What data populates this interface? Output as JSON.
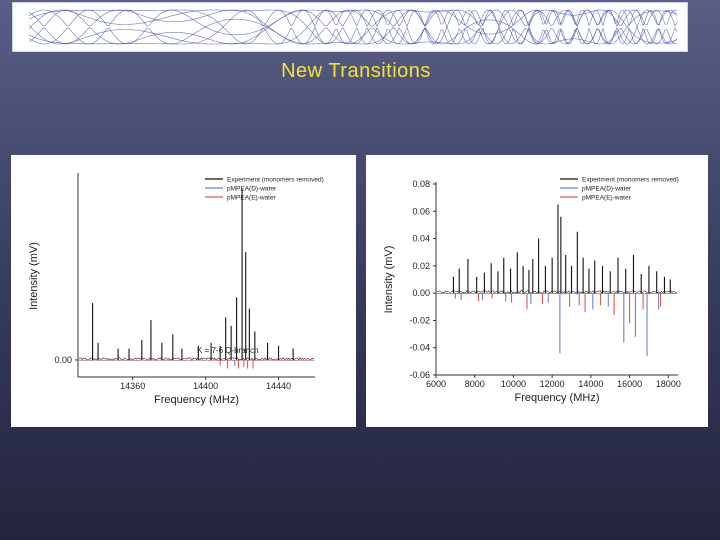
{
  "slide": {
    "title": "New Transitions",
    "background_color": "#3f4366",
    "title_color": "#f0e23a"
  },
  "chart_data": [
    {
      "type": "line",
      "title": "",
      "xlabel": "Frequency (MHz)",
      "ylabel": "Intensity (mV)",
      "xlim": [
        14330,
        14460
      ],
      "ylim": [
        -0.06,
        0.65
      ],
      "x_ticks": [
        14360,
        14400,
        14440
      ],
      "y_ticks": [
        0.0
      ],
      "y_tick_labels": [
        "0.00"
      ],
      "grid": false,
      "legend_position": "top-right",
      "annotations": [
        "K = 7-6 Q-branch"
      ],
      "series": [
        {
          "name": "Experiment (monomers removed)",
          "color": "#111111",
          "peaks": [
            {
              "x": 14338,
              "y": 0.2
            },
            {
              "x": 14341,
              "y": 0.06
            },
            {
              "x": 14352,
              "y": 0.04
            },
            {
              "x": 14358,
              "y": 0.04
            },
            {
              "x": 14365,
              "y": 0.07
            },
            {
              "x": 14370,
              "y": 0.14
            },
            {
              "x": 14376,
              "y": 0.06
            },
            {
              "x": 14382,
              "y": 0.09
            },
            {
              "x": 14387,
              "y": 0.04
            },
            {
              "x": 14396,
              "y": 0.05
            },
            {
              "x": 14403,
              "y": 0.06
            },
            {
              "x": 14408,
              "y": 0.05
            },
            {
              "x": 14411,
              "y": 0.15
            },
            {
              "x": 14414,
              "y": 0.12
            },
            {
              "x": 14417,
              "y": 0.22
            },
            {
              "x": 14420,
              "y": 0.6
            },
            {
              "x": 14422,
              "y": 0.38
            },
            {
              "x": 14424,
              "y": 0.18
            },
            {
              "x": 14427,
              "y": 0.1
            },
            {
              "x": 14434,
              "y": 0.06
            },
            {
              "x": 14440,
              "y": 0.05
            },
            {
              "x": 14448,
              "y": 0.04
            }
          ]
        },
        {
          "name": "pMPEA(D)-water",
          "color": "#6f7fd0",
          "peaks": [
            {
              "x": 14416,
              "y": -0.02
            },
            {
              "x": 14423,
              "y": -0.03
            }
          ]
        },
        {
          "name": "pMPEA(E)-water",
          "color": "#e05b55",
          "peaks": [
            {
              "x": 14408,
              "y": -0.02
            },
            {
              "x": 14412,
              "y": -0.03
            },
            {
              "x": 14418,
              "y": -0.03
            },
            {
              "x": 14421,
              "y": -0.025
            },
            {
              "x": 14426,
              "y": -0.03
            }
          ]
        }
      ]
    },
    {
      "type": "line",
      "title": "",
      "xlabel": "Frequency (MHz)",
      "ylabel": "Intensity (mV)",
      "xlim": [
        6000,
        18500
      ],
      "ylim": [
        -0.06,
        0.08
      ],
      "x_ticks": [
        6000,
        8000,
        10000,
        12000,
        14000,
        16000,
        18000
      ],
      "y_ticks": [
        0.08,
        0.06,
        0.04,
        0.02,
        0.0,
        -0.02,
        -0.04,
        -0.06
      ],
      "y_tick_labels": [
        "0.08",
        "0.06",
        "0.04",
        "0.02",
        "0.00",
        "-0.02",
        "-0.04",
        "-0.06"
      ],
      "grid": false,
      "legend_position": "top-right",
      "series": [
        {
          "name": "Experiment (monomers removed)",
          "color": "#111111",
          "peaks": [
            {
              "x": 6900,
              "y": 0.012
            },
            {
              "x": 7200,
              "y": 0.018
            },
            {
              "x": 7650,
              "y": 0.025
            },
            {
              "x": 8100,
              "y": 0.012
            },
            {
              "x": 8500,
              "y": 0.015
            },
            {
              "x": 8850,
              "y": 0.022
            },
            {
              "x": 9200,
              "y": 0.016
            },
            {
              "x": 9500,
              "y": 0.026
            },
            {
              "x": 9850,
              "y": 0.018
            },
            {
              "x": 10200,
              "y": 0.03
            },
            {
              "x": 10500,
              "y": 0.02
            },
            {
              "x": 10800,
              "y": 0.017
            },
            {
              "x": 11000,
              "y": 0.025
            },
            {
              "x": 11300,
              "y": 0.04
            },
            {
              "x": 11650,
              "y": 0.02
            },
            {
              "x": 12000,
              "y": 0.026
            },
            {
              "x": 12300,
              "y": 0.065
            },
            {
              "x": 12450,
              "y": 0.056
            },
            {
              "x": 12700,
              "y": 0.028
            },
            {
              "x": 13000,
              "y": 0.02
            },
            {
              "x": 13300,
              "y": 0.045
            },
            {
              "x": 13600,
              "y": 0.026
            },
            {
              "x": 13900,
              "y": 0.018
            },
            {
              "x": 14200,
              "y": 0.024
            },
            {
              "x": 14600,
              "y": 0.02
            },
            {
              "x": 15000,
              "y": 0.016
            },
            {
              "x": 15400,
              "y": 0.026
            },
            {
              "x": 15800,
              "y": 0.018
            },
            {
              "x": 16200,
              "y": 0.028
            },
            {
              "x": 16600,
              "y": 0.014
            },
            {
              "x": 17000,
              "y": 0.02
            },
            {
              "x": 17400,
              "y": 0.016
            },
            {
              "x": 17800,
              "y": 0.012
            },
            {
              "x": 18100,
              "y": 0.01
            }
          ]
        },
        {
          "name": "pMPEA(D)-water",
          "color": "#6f7fd0",
          "peaks": [
            {
              "x": 7000,
              "y": -0.004
            },
            {
              "x": 8400,
              "y": -0.005
            },
            {
              "x": 9600,
              "y": -0.006
            },
            {
              "x": 10900,
              "y": -0.008
            },
            {
              "x": 11800,
              "y": -0.007
            },
            {
              "x": 12400,
              "y": -0.044
            },
            {
              "x": 13400,
              "y": -0.009
            },
            {
              "x": 14100,
              "y": -0.012
            },
            {
              "x": 14900,
              "y": -0.01
            },
            {
              "x": 15700,
              "y": -0.036
            },
            {
              "x": 16300,
              "y": -0.032
            },
            {
              "x": 16900,
              "y": -0.046
            },
            {
              "x": 17500,
              "y": -0.012
            }
          ]
        },
        {
          "name": "pMPEA(E)-water",
          "color": "#e05b55",
          "peaks": [
            {
              "x": 7300,
              "y": -0.005
            },
            {
              "x": 8200,
              "y": -0.006
            },
            {
              "x": 8900,
              "y": -0.004
            },
            {
              "x": 9900,
              "y": -0.007
            },
            {
              "x": 10700,
              "y": -0.012
            },
            {
              "x": 11500,
              "y": -0.008
            },
            {
              "x": 12900,
              "y": -0.01
            },
            {
              "x": 13700,
              "y": -0.014
            },
            {
              "x": 14500,
              "y": -0.009
            },
            {
              "x": 15200,
              "y": -0.016
            },
            {
              "x": 16000,
              "y": -0.022
            },
            {
              "x": 16700,
              "y": -0.012
            },
            {
              "x": 17600,
              "y": -0.01
            }
          ]
        }
      ]
    }
  ]
}
